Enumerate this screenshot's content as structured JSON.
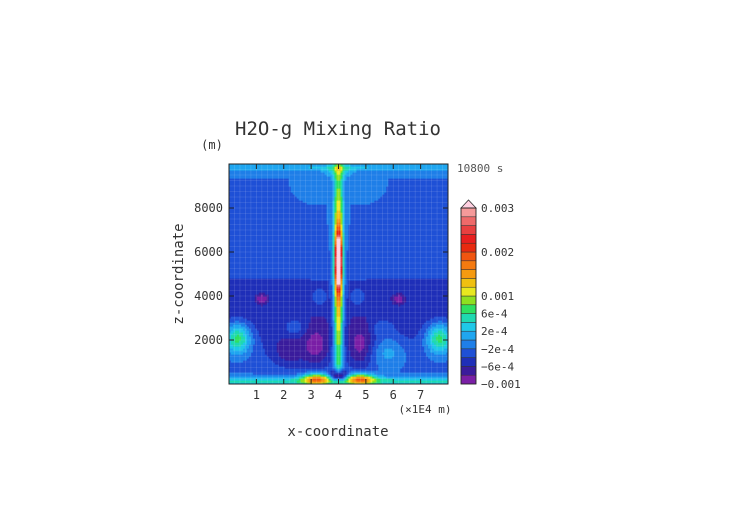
{
  "chart_data": {
    "type": "heatmap",
    "title": "H2O-g Mixing Ratio",
    "time_label": "10800 s",
    "xlabel": "x-coordinate",
    "ylabel": "z-coordinate",
    "yunit": "(m)",
    "xunit": "(×1E4 m)",
    "xlim": [
      0,
      8
    ],
    "ylim": [
      0,
      10000
    ],
    "x_ticks": [
      1,
      2,
      3,
      4,
      5,
      6,
      7
    ],
    "x_tick_labels": [
      "1",
      "2",
      "3",
      "4",
      "5",
      "6",
      "7"
    ],
    "y_ticks": [
      2000,
      4000,
      6000,
      8000
    ],
    "y_tick_labels": [
      "2000",
      "4000",
      "6000",
      "8000"
    ],
    "grid": true,
    "colorbar": {
      "position": "right",
      "levels": [
        -0.001,
        -0.0008,
        -0.0006,
        -0.0004,
        -0.0002,
        0,
        0.0002,
        0.0004,
        0.0006,
        0.0008,
        0.001,
        0.0012,
        0.0014,
        0.0016,
        0.0018,
        0.002,
        0.0022,
        0.0024,
        0.0026,
        0.0028,
        0.003
      ],
      "colors": [
        "#7a1fa6",
        "#3a1c9c",
        "#1f2fb8",
        "#1f50d6",
        "#1f7fe8",
        "#1fa6f0",
        "#1fc8e8",
        "#1fd9b0",
        "#2ee060",
        "#8ee020",
        "#e8e81f",
        "#f0c010",
        "#f59a10",
        "#f57a10",
        "#f05510",
        "#e82a10",
        "#e81f1f",
        "#e84040",
        "#ee6a6a",
        "#f59a9a"
      ],
      "extend_color": "#ffd0e0",
      "labels": [
        {
          "value": 0.003,
          "text": "0.003"
        },
        {
          "value": 0.002,
          "text": "0.002"
        },
        {
          "value": 0.001,
          "text": "0.001"
        },
        {
          "value": 0.0006,
          "text": "6e-4"
        },
        {
          "value": 0.0002,
          "text": "2e-4"
        },
        {
          "value": -0.0002,
          "text": "−2e-4"
        },
        {
          "value": -0.0006,
          "text": "−6e-4"
        },
        {
          "value": -0.001,
          "text": "−0.001"
        }
      ]
    }
  }
}
